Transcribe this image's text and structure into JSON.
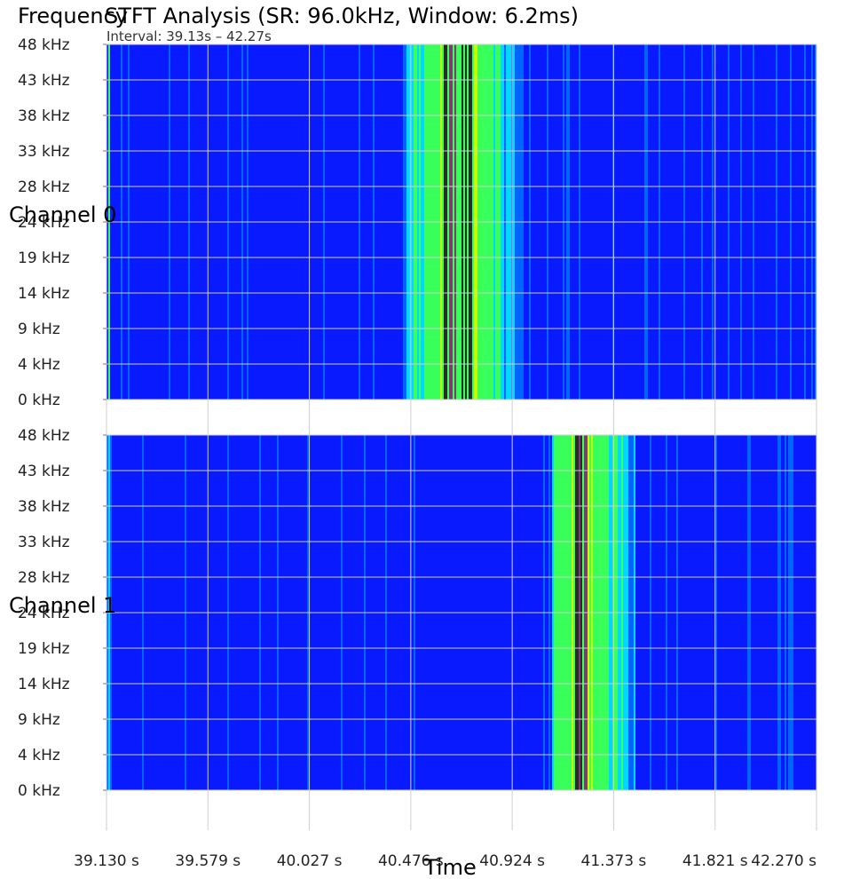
{
  "chart_data": {
    "type": "heatmap",
    "title": "STFT Analysis (SR: 96.0kHz, Window: 6.2ms)",
    "ylabel": "Frequency",
    "xlabel": "Time",
    "subtitle": "Interval: 39.13s – 42.27s",
    "x_range_s": [
      39.13,
      42.27
    ],
    "y_range_khz": [
      0,
      48
    ],
    "x_tick_labels": [
      "39.130 s",
      "39.579 s",
      "40.027 s",
      "40.476 s",
      "40.924 s",
      "41.373 s",
      "41.821 s",
      "42.270 s"
    ],
    "y_tick_labels": [
      "48 kHz",
      "43 kHz",
      "38 kHz",
      "33 kHz",
      "28 kHz",
      "24 kHz",
      "19 kHz",
      "14 kHz",
      "9 kHz",
      "4 kHz",
      "0 kHz"
    ],
    "grid": true,
    "colormap": [
      "#0a1aff",
      "#0064ff",
      "#00d8ff",
      "#39ff5a",
      "#c8ff00",
      "#2a2a2a",
      "#7a3d6e"
    ],
    "channels": [
      {
        "name": "Channel 0",
        "background_level": 0.05,
        "events": [
          {
            "start_s": 39.13,
            "end_s": 39.145,
            "peak": 0.6
          },
          {
            "start_s": 40.44,
            "end_s": 40.97,
            "peak": 1.0,
            "core_start_s": 40.62,
            "core_end_s": 40.74
          }
        ]
      },
      {
        "name": "Channel 1",
        "background_level": 0.05,
        "events": [
          {
            "start_s": 39.13,
            "end_s": 39.15,
            "peak": 0.55
          },
          {
            "start_s": 41.1,
            "end_s": 41.47,
            "peak": 1.0,
            "core_start_s": 41.2,
            "core_end_s": 41.25
          }
        ]
      }
    ]
  }
}
